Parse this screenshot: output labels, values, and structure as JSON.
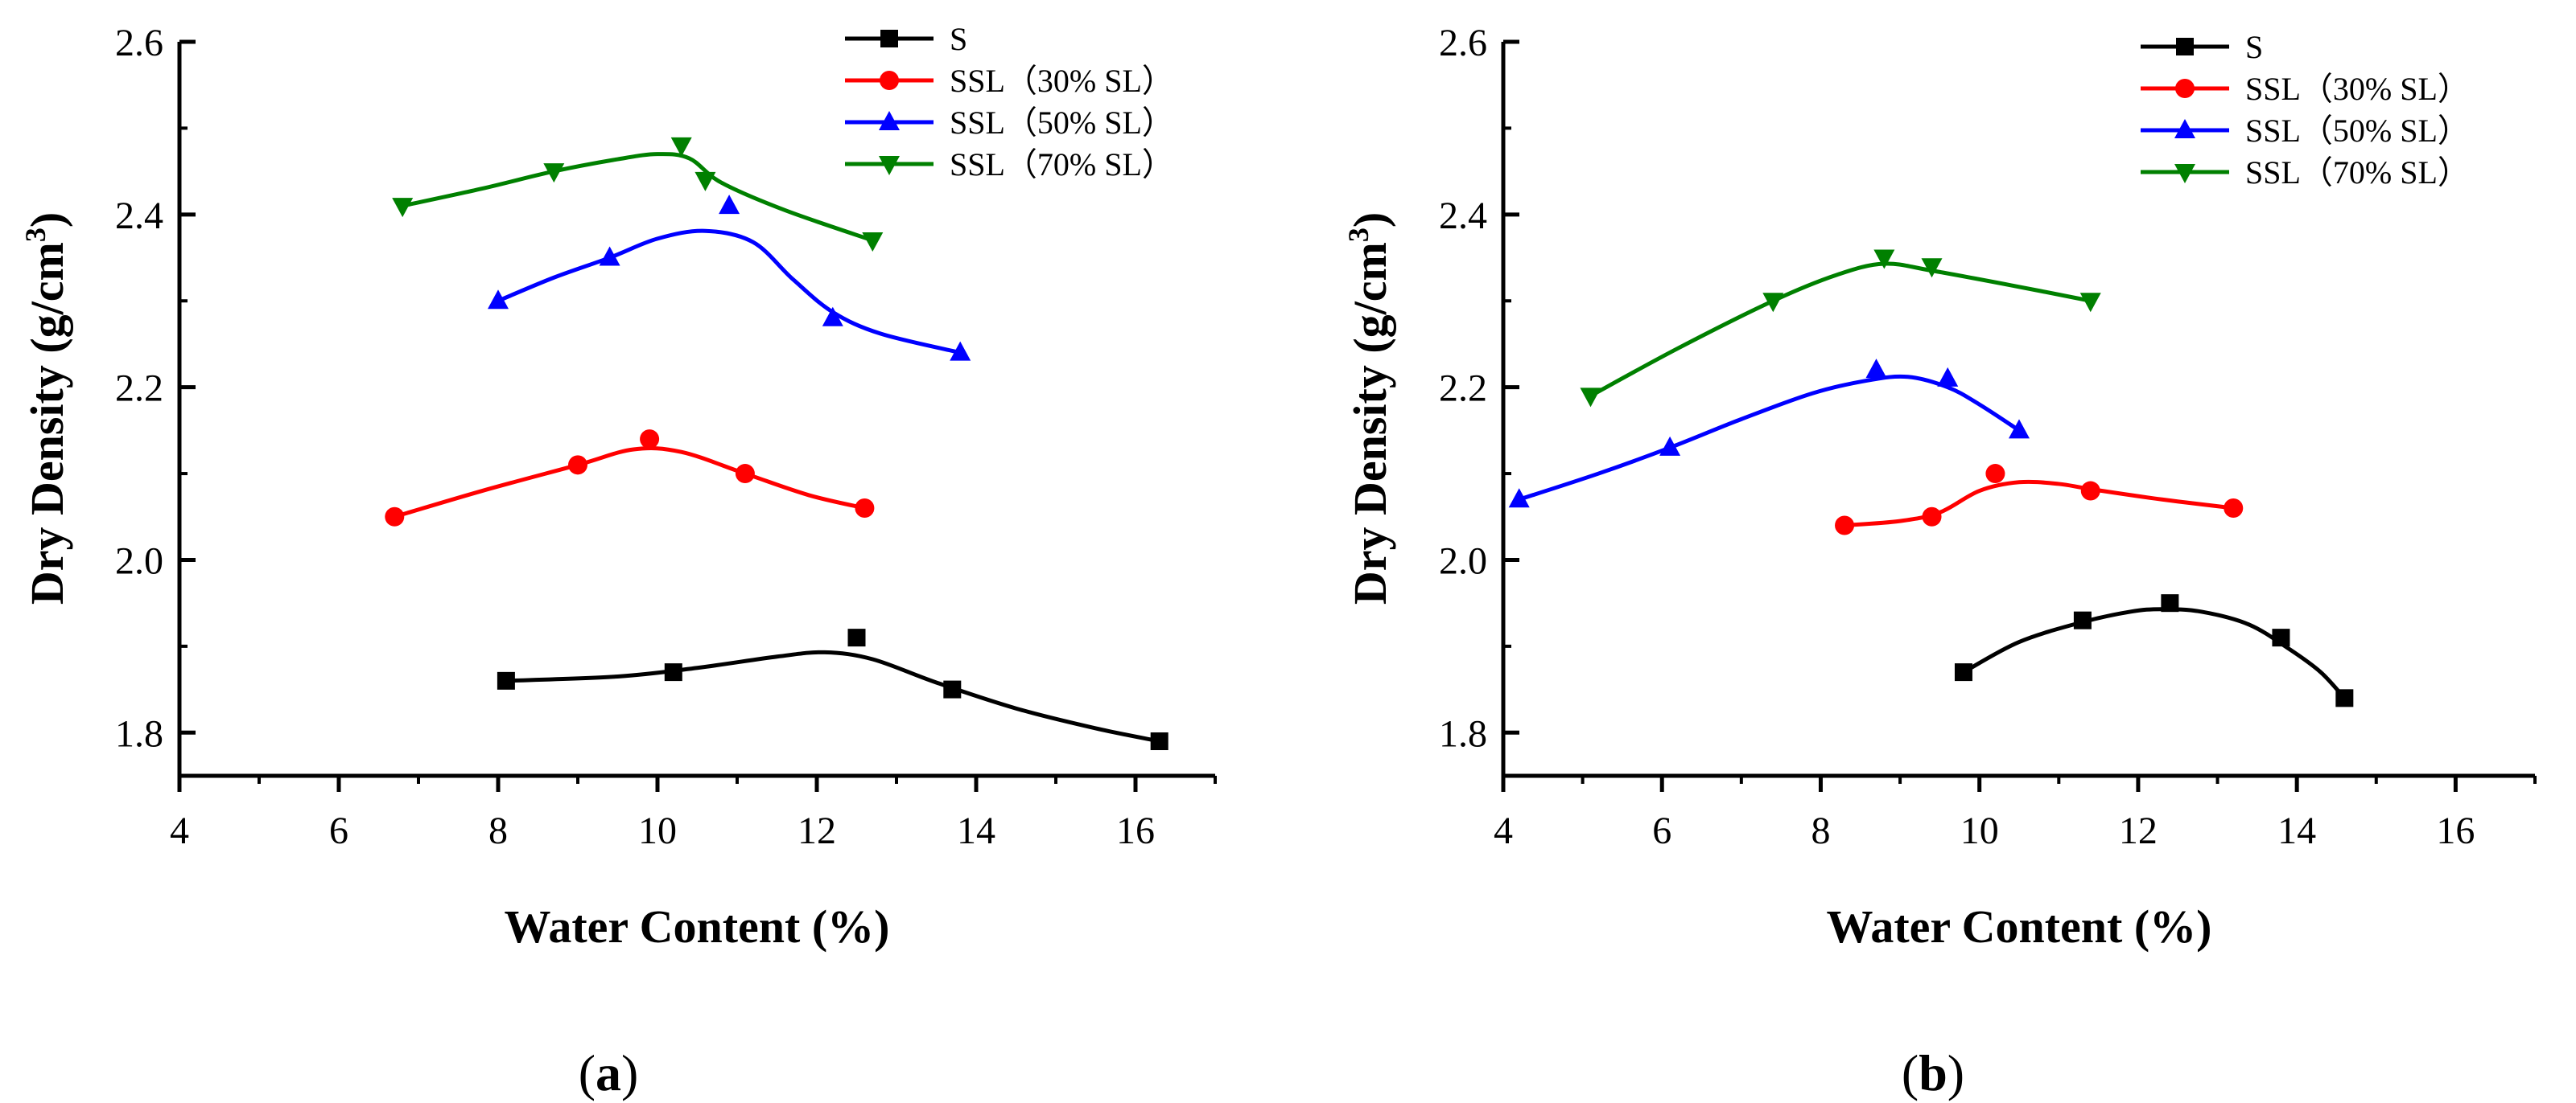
{
  "chart_data": [
    {
      "type": "line",
      "panel_label_open": "(",
      "panel_label_letter": "a",
      "panel_label_close": ")",
      "xlabel": "Water Content (%)",
      "ylabel_main": "Dry Density (g/cm",
      "ylabel_sup": "3",
      "ylabel_close": ")",
      "xlim": [
        4,
        17
      ],
      "ylim": [
        1.75,
        2.6
      ],
      "xticks": [
        4,
        6,
        8,
        10,
        12,
        14,
        16
      ],
      "xtick_labels": [
        "4",
        "6",
        "8",
        "10",
        "12",
        "14",
        "16"
      ],
      "yticks": [
        1.8,
        2.0,
        2.2,
        2.4,
        2.6
      ],
      "ytick_labels": [
        "1.8",
        "2.0",
        "2.2",
        "2.4",
        "2.6"
      ],
      "legend_position": "top-right",
      "series": [
        {
          "name": "S",
          "color": "#000000",
          "marker": "square",
          "x": [
            8.1,
            10.2,
            12.5,
            13.7,
            16.3
          ],
          "y": [
            1.86,
            1.87,
            1.91,
            1.85,
            1.79
          ],
          "curve_x": [
            8.1,
            9.5,
            10.5,
            11.5,
            12.1,
            12.7,
            13.5,
            14.5,
            15.5,
            16.3
          ],
          "curve_y": [
            1.86,
            1.865,
            1.875,
            1.888,
            1.893,
            1.885,
            1.858,
            1.828,
            1.805,
            1.79
          ]
        },
        {
          "name": "SSL（30% SL）",
          "color": "#ff0000",
          "marker": "circle",
          "x": [
            6.7,
            9.0,
            9.9,
            11.1,
            12.6
          ],
          "y": [
            2.05,
            2.11,
            2.14,
            2.1,
            2.06
          ],
          "curve_x": [
            6.7,
            7.8,
            9.0,
            9.7,
            10.3,
            11.1,
            11.9,
            12.6
          ],
          "curve_y": [
            2.05,
            2.08,
            2.11,
            2.128,
            2.125,
            2.1,
            2.075,
            2.06
          ]
        },
        {
          "name": "SSL（50% SL）",
          "color": "#0000ff",
          "marker": "triangle-up",
          "x": [
            8.0,
            9.4,
            10.9,
            12.2,
            13.8
          ],
          "y": [
            2.3,
            2.35,
            2.41,
            2.28,
            2.24
          ],
          "curve_x": [
            8.0,
            8.7,
            9.4,
            10.0,
            10.6,
            11.2,
            11.7,
            12.2,
            12.8,
            13.8
          ],
          "curve_y": [
            2.3,
            2.327,
            2.35,
            2.372,
            2.381,
            2.368,
            2.325,
            2.287,
            2.262,
            2.24
          ]
        },
        {
          "name": "SSL（70% SL）",
          "color": "#008000",
          "marker": "triangle-down",
          "x": [
            6.8,
            8.7,
            10.3,
            10.6,
            12.7
          ],
          "y": [
            2.41,
            2.45,
            2.48,
            2.44,
            2.37
          ],
          "curve_x": [
            6.8,
            7.8,
            8.7,
            9.5,
            10.0,
            10.4,
            10.8,
            11.6,
            12.7
          ],
          "curve_y": [
            2.41,
            2.43,
            2.45,
            2.464,
            2.47,
            2.465,
            2.437,
            2.405,
            2.37
          ]
        }
      ]
    },
    {
      "type": "line",
      "panel_label_open": "(",
      "panel_label_letter": "b",
      "panel_label_close": ")",
      "xlabel": "Water Content (%)",
      "ylabel_main": "Dry Density (g/cm",
      "ylabel_sup": "3",
      "ylabel_close": ")",
      "xlim": [
        4,
        17
      ],
      "ylim": [
        1.75,
        2.6
      ],
      "xticks": [
        4,
        6,
        8,
        10,
        12,
        14,
        16
      ],
      "xtick_labels": [
        "4",
        "6",
        "8",
        "10",
        "12",
        "14",
        "16"
      ],
      "yticks": [
        1.8,
        2.0,
        2.2,
        2.4,
        2.6
      ],
      "ytick_labels": [
        "1.8",
        "2.0",
        "2.2",
        "2.4",
        "2.6"
      ],
      "legend_position": "top-right",
      "series": [
        {
          "name": "S",
          "color": "#000000",
          "marker": "square",
          "x": [
            9.8,
            11.3,
            12.4,
            13.8,
            14.6
          ],
          "y": [
            1.87,
            1.93,
            1.95,
            1.91,
            1.84
          ],
          "curve_x": [
            9.8,
            10.5,
            11.3,
            11.9,
            12.3,
            12.8,
            13.4,
            13.9,
            14.3,
            14.6
          ],
          "curve_y": [
            1.87,
            1.905,
            1.928,
            1.94,
            1.943,
            1.94,
            1.925,
            1.897,
            1.87,
            1.84
          ]
        },
        {
          "name": "SSL（30% SL）",
          "color": "#ff0000",
          "marker": "circle",
          "x": [
            8.3,
            9.4,
            10.2,
            11.4,
            13.2
          ],
          "y": [
            2.04,
            2.05,
            2.1,
            2.08,
            2.06
          ],
          "curve_x": [
            8.3,
            9.0,
            9.5,
            10.0,
            10.5,
            11.0,
            11.4,
            12.3,
            13.2
          ],
          "curve_y": [
            2.04,
            2.045,
            2.055,
            2.08,
            2.09,
            2.088,
            2.082,
            2.07,
            2.06
          ]
        },
        {
          "name": "SSL（50% SL）",
          "color": "#0000ff",
          "marker": "triangle-up",
          "x": [
            4.2,
            6.1,
            8.7,
            9.6,
            10.5
          ],
          "y": [
            2.07,
            2.13,
            2.22,
            2.21,
            2.15
          ],
          "curve_x": [
            4.2,
            5.2,
            6.1,
            7.0,
            7.9,
            8.6,
            9.1,
            9.6,
            10.0,
            10.5
          ],
          "curve_y": [
            2.07,
            2.1,
            2.13,
            2.163,
            2.193,
            2.208,
            2.212,
            2.2,
            2.18,
            2.15
          ]
        },
        {
          "name": "SSL（70% SL）",
          "color": "#008000",
          "marker": "triangle-down",
          "x": [
            5.1,
            7.4,
            8.8,
            9.4,
            11.4
          ],
          "y": [
            2.19,
            2.3,
            2.35,
            2.34,
            2.3
          ],
          "curve_x": [
            5.1,
            6.2,
            7.4,
            8.2,
            8.8,
            9.4,
            10.4,
            11.4
          ],
          "curve_y": [
            2.19,
            2.245,
            2.3,
            2.33,
            2.343,
            2.335,
            2.318,
            2.3
          ]
        }
      ]
    }
  ]
}
